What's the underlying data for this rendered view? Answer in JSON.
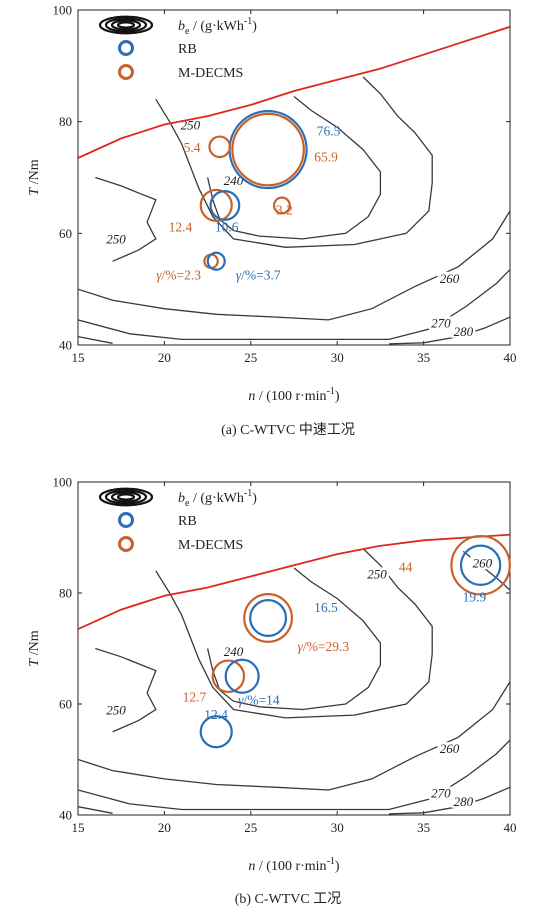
{
  "colors": {
    "rb": "#2a6fb5",
    "mdecms": "#c8602a",
    "torque_limit": "#e0261f",
    "contour": "#3a3a3a"
  },
  "legend": {
    "contour_label_main": "b",
    "contour_label_sub": "e",
    "contour_label_rest": " / (g·kWh",
    "contour_label_sup": "-1",
    "contour_label_close": ")",
    "rb": "RB",
    "mdecms": "M-DECMS"
  },
  "chart_data": [
    {
      "type": "scatter",
      "caption": "(a)  C-WTVC 中速工况",
      "xlabel": "n / (100 r·min-1)",
      "ylabel": "T / Nm",
      "xlim": [
        15,
        40
      ],
      "ylim": [
        40,
        100
      ],
      "xticks": [
        15,
        20,
        25,
        30,
        35,
        40
      ],
      "yticks": [
        40,
        60,
        80,
        100
      ],
      "torque_limit": [
        [
          15,
          73.5
        ],
        [
          17.5,
          77
        ],
        [
          20,
          79.5
        ],
        [
          22.5,
          81
        ],
        [
          25,
          83
        ],
        [
          27.5,
          85.5
        ],
        [
          30,
          87.5
        ],
        [
          32.5,
          89.5
        ],
        [
          35,
          92
        ],
        [
          37.5,
          94.5
        ],
        [
          40,
          97
        ]
      ],
      "contours": [
        {
          "label": "240",
          "points": [
            [
              22.5,
              70
            ],
            [
              22.8,
              66
            ],
            [
              23.2,
              62.5
            ],
            [
              24,
              60.5
            ],
            [
              25.5,
              59.5
            ],
            [
              28,
              59
            ],
            [
              30.5,
              60
            ],
            [
              31.8,
              63
            ],
            [
              32.5,
              67
            ],
            [
              32.5,
              71
            ],
            [
              31.5,
              75
            ],
            [
              30,
              79
            ],
            [
              28.5,
              82
            ],
            [
              27.5,
              84.5
            ]
          ],
          "label_at": [
            24,
            69
          ]
        },
        {
          "label": "250",
          "points": [
            [
              19.5,
              84
            ],
            [
              20.3,
              80
            ],
            [
              21,
              76
            ],
            [
              21.5,
              72
            ],
            [
              22,
              68
            ],
            [
              22.8,
              63
            ],
            [
              24,
              59
            ],
            [
              27,
              57.5
            ],
            [
              31,
              58
            ],
            [
              34,
              60
            ],
            [
              35.3,
              64
            ],
            [
              35.5,
              69
            ],
            [
              35.5,
              74
            ],
            [
              34.5,
              78
            ],
            [
              33.5,
              81
            ],
            [
              32.5,
              85
            ],
            [
              31.5,
              88
            ]
          ],
          "label_at": [
            21.5,
            79
          ]
        },
        {
          "label": "250",
          "points": [
            [
              16,
              70
            ],
            [
              17.5,
              68.5
            ],
            [
              18.7,
              67
            ],
            [
              19.5,
              66
            ],
            [
              19,
              62
            ],
            [
              19.5,
              59
            ],
            [
              18.5,
              57
            ],
            [
              17,
              55
            ]
          ],
          "label_at": [
            17.2,
            58.5
          ]
        },
        {
          "label": "260",
          "points": [
            [
              15,
              50
            ],
            [
              17,
              48
            ],
            [
              20,
              46.5
            ],
            [
              23,
              45.5
            ],
            [
              26.5,
              45
            ],
            [
              29.5,
              44.5
            ],
            [
              32,
              46.5
            ],
            [
              34.5,
              50.5
            ],
            [
              37,
              54
            ],
            [
              39,
              59
            ],
            [
              40,
              64
            ]
          ],
          "label_at": [
            36.5,
            51.5
          ]
        },
        {
          "label": "270",
          "points": [
            [
              15,
              44.5
            ],
            [
              18,
              42
            ],
            [
              21,
              41
            ],
            [
              24,
              41
            ],
            [
              27,
              41
            ],
            [
              30,
              41
            ],
            [
              33,
              41
            ],
            [
              35.5,
              43
            ],
            [
              37.5,
              47
            ],
            [
              39.2,
              51
            ],
            [
              40,
              53.5
            ]
          ],
          "label_at": [
            36,
            43.5
          ]
        },
        {
          "label": "280",
          "points": [
            [
              15,
              41.5
            ],
            [
              17,
              40.3
            ]
          ],
          "label_at": null
        },
        {
          "label": "280",
          "points": [
            [
              33,
              40.2
            ],
            [
              35,
              40.4
            ],
            [
              37,
              41.5
            ],
            [
              38.5,
              43
            ],
            [
              40,
              45
            ]
          ],
          "label_at": [
            37.3,
            42
          ]
        }
      ],
      "points": [
        {
          "series": "RB",
          "x": 26.0,
          "y": 75,
          "size": 76.5,
          "label": "76.5"
        },
        {
          "series": "M-DECMS",
          "x": 26.0,
          "y": 75,
          "size": 65.9,
          "label": "65.9"
        },
        {
          "series": "M-DECMS",
          "x": 23.2,
          "y": 75.5,
          "size": 5.4,
          "label": "5.4"
        },
        {
          "series": "M-DECMS",
          "x": 23.0,
          "y": 65,
          "size": 12.4,
          "label": "12.4"
        },
        {
          "series": "RB",
          "x": 23.5,
          "y": 65,
          "size": 10.6,
          "label": "10.6"
        },
        {
          "series": "M-DECMS",
          "x": 26.8,
          "y": 65,
          "size": 3.2,
          "label": "3.2"
        },
        {
          "series": "M-DECMS",
          "x": 22.7,
          "y": 55,
          "size": 2.3,
          "label": "γ/%=2.3"
        },
        {
          "series": "RB",
          "x": 23.0,
          "y": 55,
          "size": 3.7,
          "label": "γ/%=3.7"
        }
      ]
    },
    {
      "type": "scatter",
      "caption": "(b)  C-WTVC 工况",
      "xlabel": "n / (100 r·min-1)",
      "ylabel": "T / Nm",
      "xlim": [
        15,
        40
      ],
      "ylim": [
        40,
        100
      ],
      "xticks": [
        15,
        20,
        25,
        30,
        35,
        40
      ],
      "yticks": [
        40,
        60,
        80,
        100
      ],
      "torque_limit": [
        [
          15,
          73.5
        ],
        [
          17.5,
          77
        ],
        [
          20,
          79.5
        ],
        [
          22.5,
          81
        ],
        [
          25,
          83
        ],
        [
          27.5,
          85
        ],
        [
          30,
          87
        ],
        [
          32.5,
          88.5
        ],
        [
          35,
          89.5
        ],
        [
          37.5,
          90
        ],
        [
          40,
          90.5
        ]
      ],
      "contours": [
        {
          "label": "240",
          "points": [
            [
              22.5,
              70
            ],
            [
              22.8,
              66
            ],
            [
              23.2,
              62.5
            ],
            [
              24,
              60.5
            ],
            [
              25.5,
              59.5
            ],
            [
              28,
              59
            ],
            [
              30.5,
              60
            ],
            [
              31.8,
              63
            ],
            [
              32.5,
              67
            ],
            [
              32.5,
              71
            ],
            [
              31.5,
              75
            ],
            [
              30,
              79
            ],
            [
              28.5,
              82
            ],
            [
              27.5,
              84.5
            ]
          ],
          "label_at": [
            24,
            69
          ]
        },
        {
          "label": "250",
          "points": [
            [
              19.5,
              84
            ],
            [
              20.3,
              80
            ],
            [
              21,
              76
            ],
            [
              21.5,
              72
            ],
            [
              22,
              68
            ],
            [
              22.8,
              63
            ],
            [
              24,
              59
            ],
            [
              27,
              57.5
            ],
            [
              31,
              58
            ],
            [
              34,
              60
            ],
            [
              35.3,
              64
            ],
            [
              35.5,
              69
            ],
            [
              35.5,
              74
            ],
            [
              34.5,
              78
            ],
            [
              33.5,
              81
            ],
            [
              32.5,
              85
            ],
            [
              31.5,
              88
            ]
          ],
          "label_at": [
            32.3,
            83
          ]
        },
        {
          "label": "250",
          "points": [
            [
              16,
              70
            ],
            [
              17.5,
              68.5
            ],
            [
              18.7,
              67
            ],
            [
              19.5,
              66
            ],
            [
              19,
              62
            ],
            [
              19.5,
              59
            ],
            [
              18.5,
              57
            ],
            [
              17,
              55
            ]
          ],
          "label_at": [
            17.2,
            58.5
          ]
        },
        {
          "label": "260",
          "points": [
            [
              15,
              50
            ],
            [
              17,
              48
            ],
            [
              20,
              46.5
            ],
            [
              23,
              45.5
            ],
            [
              26.5,
              45
            ],
            [
              29.5,
              44.5
            ],
            [
              32,
              46.5
            ],
            [
              34.5,
              50.5
            ],
            [
              37,
              54
            ],
            [
              39,
              59
            ],
            [
              40,
              64
            ]
          ],
          "label_at": [
            36.5,
            51.5
          ]
        },
        {
          "label": "260",
          "points": [
            [
              37.3,
              87.5
            ],
            [
              38.3,
              85
            ],
            [
              39.3,
              82.5
            ],
            [
              40,
              80.5
            ]
          ],
          "label_at": [
            38.4,
            85
          ]
        },
        {
          "label": "270",
          "points": [
            [
              15,
              44.5
            ],
            [
              18,
              42
            ],
            [
              21,
              41
            ],
            [
              24,
              41
            ],
            [
              27,
              41
            ],
            [
              30,
              41
            ],
            [
              33,
              41
            ],
            [
              35.5,
              43
            ],
            [
              37.5,
              47
            ],
            [
              39.2,
              51
            ],
            [
              40,
              53.5
            ]
          ],
          "label_at": [
            36,
            43.5
          ]
        },
        {
          "label": "280",
          "points": [
            [
              15,
              41.5
            ],
            [
              17,
              40.3
            ]
          ],
          "label_at": null
        },
        {
          "label": "280",
          "points": [
            [
              33,
              40.2
            ],
            [
              35,
              40.4
            ],
            [
              37,
              41.5
            ],
            [
              38.5,
              43
            ],
            [
              40,
              45
            ]
          ],
          "label_at": [
            37.3,
            42
          ]
        }
      ],
      "points": [
        {
          "series": "M-DECMS",
          "x": 26.0,
          "y": 75.5,
          "size": 29.3,
          "label": "γ/%=29.3"
        },
        {
          "series": "RB",
          "x": 26.0,
          "y": 75.5,
          "size": 16.5,
          "label": "16.5"
        },
        {
          "series": "M-DECMS",
          "x": 38.3,
          "y": 85,
          "size": 44,
          "label": "44"
        },
        {
          "series": "RB",
          "x": 38.3,
          "y": 85,
          "size": 19.9,
          "label": "19.9"
        },
        {
          "series": "M-DECMS",
          "x": 23.7,
          "y": 65,
          "size": 12.7,
          "label": "12.7"
        },
        {
          "series": "RB",
          "x": 24.5,
          "y": 65,
          "size": 14,
          "label": "γ/%=14"
        },
        {
          "series": "RB",
          "x": 23.0,
          "y": 55,
          "size": 12.4,
          "label": "12.4"
        }
      ]
    }
  ]
}
